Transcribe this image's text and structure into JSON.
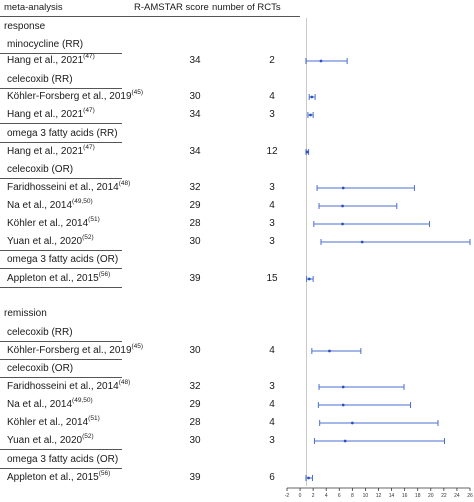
{
  "headers": {
    "meta_analysis": "meta-analysis",
    "ramstar": "R-AMSTAR score",
    "rcts": "number of RCTs"
  },
  "chart_data": {
    "type": "forest",
    "xlim": [
      -2,
      26
    ],
    "x_ticks": [
      "-2",
      "0",
      "2",
      "4",
      "6",
      "8",
      "10",
      "12",
      "14",
      "16",
      "18",
      "20",
      "22",
      "24",
      "26"
    ],
    "reference_line": 1,
    "rows": [
      {
        "kind": "section",
        "label": "response"
      },
      {
        "kind": "group",
        "label": "minocycline (RR)"
      },
      {
        "kind": "study",
        "author": "Hang et al., 2021",
        "ref": "(47)",
        "score": "34",
        "rcts": "2",
        "est": 3.2,
        "lo": 0.9,
        "hi": 7.2
      },
      {
        "kind": "group",
        "label": "celecoxib (RR)"
      },
      {
        "kind": "study",
        "author": "Köhler-Forsberg et al., 2019",
        "ref": "(45)",
        "score": "30",
        "rcts": "4",
        "est": 1.8,
        "lo": 1.4,
        "hi": 2.3
      },
      {
        "kind": "study",
        "author": "Hang et al., 2021",
        "ref": "(47)",
        "score": "34",
        "rcts": "3",
        "est": 1.6,
        "lo": 1.2,
        "hi": 2.0
      },
      {
        "kind": "group",
        "label": "omega 3 fatty acids (RR)"
      },
      {
        "kind": "study",
        "author": "Hang et al., 2021",
        "ref": "(47)",
        "score": "34",
        "rcts": "12",
        "est": 1.1,
        "lo": 0.9,
        "hi": 1.3
      },
      {
        "kind": "group",
        "label": "celecoxib (OR)"
      },
      {
        "kind": "study",
        "author": "Faridhosseini et al., 2014",
        "ref": "(48)",
        "score": "32",
        "rcts": "3",
        "est": 6.6,
        "lo": 2.6,
        "hi": 17.5
      },
      {
        "kind": "study",
        "author": "Na et al., 2014",
        "ref": "(49,50)",
        "score": "29",
        "rcts": "4",
        "est": 6.5,
        "lo": 2.9,
        "hi": 14.8
      },
      {
        "kind": "study",
        "author": "Köhler et al., 2014",
        "ref": "(51)",
        "score": "28",
        "rcts": "3",
        "est": 6.5,
        "lo": 2.1,
        "hi": 19.8
      },
      {
        "kind": "study",
        "author": "Yuan et al., 2020",
        "ref": "(52)",
        "score": "30",
        "rcts": "3",
        "est": 9.5,
        "lo": 3.2,
        "hi": 26.0
      },
      {
        "kind": "group",
        "label": "omega 3 fatty acids (OR)"
      },
      {
        "kind": "study",
        "author": "Appleton et al., 2015",
        "ref": "(56)",
        "score": "39",
        "rcts": "15",
        "est": 1.4,
        "lo": 1.0,
        "hi": 2.0
      },
      {
        "kind": "section",
        "label": "remission"
      },
      {
        "kind": "group",
        "label": "celecoxib (RR)"
      },
      {
        "kind": "study",
        "author": "Köhler-Forsberg et al., 2019",
        "ref": "(45)",
        "score": "30",
        "rcts": "4",
        "est": 4.5,
        "lo": 1.8,
        "hi": 9.3
      },
      {
        "kind": "group",
        "label": "celecoxib (OR)"
      },
      {
        "kind": "study",
        "author": "Faridhosseini et al., 2014",
        "ref": "(48)",
        "score": "32",
        "rcts": "3",
        "est": 6.6,
        "lo": 2.9,
        "hi": 15.9
      },
      {
        "kind": "study",
        "author": "Na et al., 2014",
        "ref": "(49,50)",
        "score": "29",
        "rcts": "4",
        "est": 6.6,
        "lo": 2.8,
        "hi": 16.9
      },
      {
        "kind": "study",
        "author": "Köhler et al., 2014",
        "ref": "(51)",
        "score": "28",
        "rcts": "4",
        "est": 8.0,
        "lo": 3.0,
        "hi": 21.1
      },
      {
        "kind": "study",
        "author": "Yuan et al., 2020",
        "ref": "(52)",
        "score": "30",
        "rcts": "3",
        "est": 6.9,
        "lo": 2.2,
        "hi": 22.1
      },
      {
        "kind": "group",
        "label": "omega 3 fatty acids (OR)"
      },
      {
        "kind": "study",
        "author": "Appleton et al., 2015",
        "ref": "(56)",
        "score": "39",
        "rcts": "6",
        "est": 1.3,
        "lo": 0.9,
        "hi": 1.9
      }
    ]
  }
}
